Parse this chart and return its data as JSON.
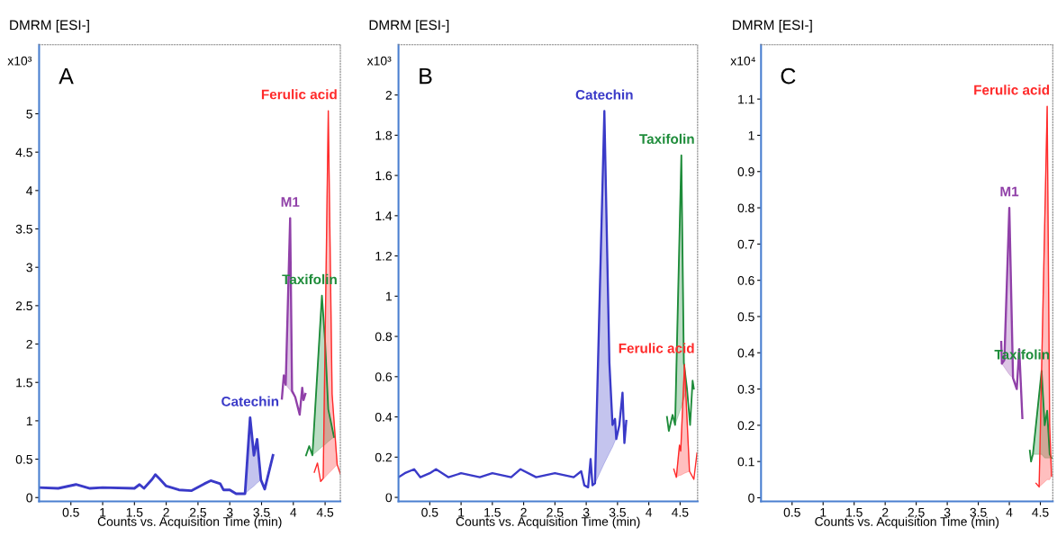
{
  "chart_data": [
    {
      "type": "line",
      "title": "DMRM [ESI-]",
      "xlabel": "Counts vs. Acquisition Time (min)",
      "ylabel": "x10³",
      "annotations": [
        "A"
      ],
      "xlim": [
        0,
        4.74
      ],
      "xticks": [
        0.5,
        1,
        1.5,
        2,
        2.5,
        3,
        3.5,
        4,
        4.5
      ],
      "ylim": [
        -0.05,
        5.9
      ],
      "yticks": [
        0,
        0.5,
        1,
        1.5,
        2,
        2.5,
        3,
        3.5,
        4,
        4.5,
        5
      ],
      "grid": false,
      "legend": false,
      "marker": "none",
      "line_style": "solid",
      "series": [
        {
          "name": "Catechin",
          "color": "#3a3ac8",
          "x": [
            0,
            0.3,
            0.58,
            0.8,
            1.0,
            1.5,
            1.58,
            1.65,
            1.78,
            1.83,
            1.9,
            2.0,
            2.2,
            2.4,
            2.6,
            2.7,
            2.85,
            2.9,
            3.0,
            3.1,
            3.24,
            3.32,
            3.38,
            3.43,
            3.49,
            3.55,
            3.68
          ],
          "values": [
            0.13,
            0.12,
            0.17,
            0.12,
            0.13,
            0.12,
            0.17,
            0.12,
            0.24,
            0.3,
            0.24,
            0.15,
            0.1,
            0.09,
            0.18,
            0.22,
            0.18,
            0.1,
            0.1,
            0.05,
            0.05,
            1.04,
            0.55,
            0.76,
            0.23,
            0.11,
            0.55
          ],
          "lower": [
            null,
            null,
            null,
            null,
            null,
            null,
            null,
            null,
            null,
            null,
            null,
            null,
            null,
            null,
            null,
            null,
            null,
            null,
            null,
            null,
            0.05,
            0.11,
            0.15,
            0.19,
            0.23,
            null,
            null
          ],
          "upper": [
            null,
            null,
            null,
            null,
            null,
            null,
            null,
            null,
            null,
            null,
            null,
            null,
            null,
            null,
            null,
            null,
            null,
            null,
            null,
            null,
            0.05,
            1.04,
            0.55,
            0.76,
            0.23,
            null,
            null
          ]
        },
        {
          "name": "M1",
          "color": "#9040a8",
          "x": [
            3.82,
            3.85,
            3.88,
            3.95,
            3.98,
            4.03,
            4.1,
            4.14,
            4.16,
            4.19
          ],
          "values": [
            1.29,
            1.59,
            1.47,
            3.64,
            1.39,
            1.31,
            1.08,
            1.43,
            1.27,
            1.35
          ],
          "lower": [
            null,
            null,
            1.47,
            1.4,
            1.36,
            1.31,
            null,
            null,
            null,
            null
          ],
          "upper": [
            null,
            null,
            1.47,
            3.64,
            1.39,
            1.31,
            null,
            null,
            null,
            null
          ]
        },
        {
          "name": "Taxifolin",
          "color": "#1e8c3a",
          "x": [
            4.2,
            4.25,
            4.3,
            4.45,
            4.5,
            4.55,
            4.64
          ],
          "values": [
            0.55,
            0.67,
            0.55,
            2.63,
            2.03,
            1.15,
            0.79
          ],
          "lower": [
            null,
            null,
            0.55,
            0.66,
            0.69,
            0.73,
            0.79
          ],
          "upper": [
            null,
            null,
            0.55,
            2.63,
            2.03,
            1.15,
            0.79
          ]
        },
        {
          "name": "Ferulic acid",
          "color": "#ff2a2a",
          "x": [
            4.33,
            4.38,
            4.43,
            4.47,
            4.55,
            4.61,
            4.69,
            4.74
          ],
          "values": [
            0.33,
            0.45,
            0.21,
            0.25,
            5.04,
            1.35,
            0.43,
            0.31
          ],
          "lower": [
            null,
            null,
            0.21,
            0.24,
            0.31,
            0.36,
            0.43,
            null
          ],
          "upper": [
            null,
            null,
            0.21,
            0.25,
            5.04,
            1.35,
            0.43,
            null
          ]
        }
      ]
    },
    {
      "type": "line",
      "title": "DMRM [ESI-]",
      "xlabel": "Counts vs. Acquisition Time (min)",
      "ylabel": "x10³",
      "annotations": [
        "B"
      ],
      "xlim": [
        0,
        4.78
      ],
      "xticks": [
        0.5,
        1,
        1.5,
        2,
        2.5,
        3,
        3.5,
        4,
        4.5
      ],
      "ylim": [
        -0.02,
        2.25
      ],
      "yticks": [
        0,
        0.2,
        0.4,
        0.6,
        0.8,
        1,
        1.2,
        1.4,
        1.6,
        1.8,
        2
      ],
      "grid": false,
      "legend": false,
      "marker": "none",
      "line_style": "solid",
      "series": [
        {
          "name": "Catechin",
          "color": "#3a3ac8",
          "x": [
            0,
            0.1,
            0.25,
            0.35,
            0.5,
            0.6,
            0.8,
            1.0,
            1.3,
            1.5,
            1.8,
            1.95,
            2.2,
            2.5,
            2.8,
            2.92,
            2.97,
            3.03,
            3.07,
            3.1,
            3.14,
            3.29,
            3.37,
            3.42,
            3.46,
            3.48,
            3.53,
            3.58,
            3.61,
            3.64
          ],
          "values": [
            0.1,
            0.12,
            0.14,
            0.1,
            0.12,
            0.14,
            0.1,
            0.12,
            0.1,
            0.12,
            0.1,
            0.14,
            0.1,
            0.12,
            0.1,
            0.13,
            0.06,
            0.05,
            0.19,
            0.06,
            0.07,
            1.92,
            0.67,
            0.36,
            0.39,
            0.29,
            0.36,
            0.52,
            0.27,
            0.38
          ],
          "lower": [
            null,
            null,
            null,
            null,
            null,
            null,
            null,
            null,
            null,
            null,
            null,
            null,
            null,
            null,
            null,
            null,
            null,
            null,
            null,
            null,
            0.07,
            0.17,
            0.22,
            0.25,
            0.28,
            0.29,
            null,
            null,
            null,
            null
          ],
          "upper": [
            null,
            null,
            null,
            null,
            null,
            null,
            null,
            null,
            null,
            null,
            null,
            null,
            null,
            null,
            null,
            null,
            null,
            null,
            null,
            null,
            0.07,
            1.92,
            0.67,
            0.36,
            0.39,
            0.29,
            null,
            null,
            null,
            null
          ]
        },
        {
          "name": "Taxifolin",
          "color": "#1e8c3a",
          "x": [
            4.29,
            4.32,
            4.38,
            4.42,
            4.52,
            4.56,
            4.61,
            4.66,
            4.7,
            4.72
          ],
          "values": [
            0.4,
            0.33,
            0.41,
            0.36,
            1.7,
            0.67,
            0.54,
            0.36,
            0.58,
            0.54
          ],
          "lower": [
            null,
            null,
            null,
            0.36,
            0.45,
            0.49,
            0.54,
            null,
            null,
            null
          ],
          "upper": [
            null,
            null,
            null,
            0.36,
            1.7,
            0.67,
            0.54,
            null,
            null,
            null
          ]
        },
        {
          "name": "Ferulic acid",
          "color": "#ff2a2a",
          "x": [
            4.4,
            4.44,
            4.49,
            4.51,
            4.57,
            4.65,
            4.72,
            4.77
          ],
          "values": [
            0.14,
            0.1,
            0.26,
            0.23,
            0.66,
            0.13,
            0.09,
            0.22
          ],
          "lower": [
            null,
            0.1,
            0.11,
            0.11,
            0.12,
            0.13,
            null,
            null
          ],
          "upper": [
            null,
            0.1,
            0.26,
            0.23,
            0.66,
            0.13,
            null,
            null
          ]
        }
      ]
    },
    {
      "type": "line",
      "title": "DMRM [ESI-]",
      "xlabel": "Counts vs. Acquisition Time (min)",
      "ylabel": "x10⁴",
      "annotations": [
        "C"
      ],
      "xlim": [
        0,
        4.7
      ],
      "xticks": [
        0.5,
        1,
        1.5,
        2,
        2.5,
        3,
        3.5,
        4,
        4.5
      ],
      "ylim": [
        -0.01,
        1.25
      ],
      "yticks": [
        0,
        0.1,
        0.2,
        0.3,
        0.4,
        0.5,
        0.6,
        0.7,
        0.8,
        0.9,
        1,
        1.1
      ],
      "grid": false,
      "legend": false,
      "marker": "none",
      "line_style": "solid",
      "series": [
        {
          "name": "M1",
          "color": "#9040a8",
          "x": [
            3.87,
            3.88,
            3.92,
            4.0,
            4.06,
            4.12,
            4.16,
            4.21
          ],
          "values": [
            0.43,
            0.37,
            0.38,
            0.8,
            0.33,
            0.3,
            0.41,
            0.22
          ],
          "lower": [
            null,
            0.37,
            0.36,
            0.34,
            0.33,
            null,
            null,
            null
          ],
          "upper": [
            null,
            0.37,
            0.38,
            0.8,
            0.33,
            null,
            null,
            null
          ]
        },
        {
          "name": "Taxifolin",
          "color": "#1e8c3a",
          "x": [
            4.33,
            4.35,
            4.38,
            4.52,
            4.57,
            4.61,
            4.65,
            4.68
          ],
          "values": [
            0.13,
            0.1,
            0.12,
            0.35,
            0.2,
            0.24,
            0.12,
            0.11
          ],
          "lower": [
            null,
            null,
            0.12,
            0.12,
            0.11,
            0.11,
            0.11,
            0.11
          ],
          "upper": [
            null,
            null,
            0.12,
            0.35,
            0.2,
            0.24,
            0.12,
            0.11
          ]
        },
        {
          "name": "Ferulic acid",
          "color": "#ff2a2a",
          "x": [
            4.43,
            4.48,
            4.61,
            4.65,
            4.68
          ],
          "values": [
            0.04,
            0.03,
            1.08,
            0.2,
            0.06
          ],
          "lower": [
            null,
            0.03,
            0.05,
            0.05,
            0.06
          ],
          "upper": [
            null,
            0.03,
            1.08,
            0.2,
            0.06
          ]
        }
      ]
    }
  ]
}
